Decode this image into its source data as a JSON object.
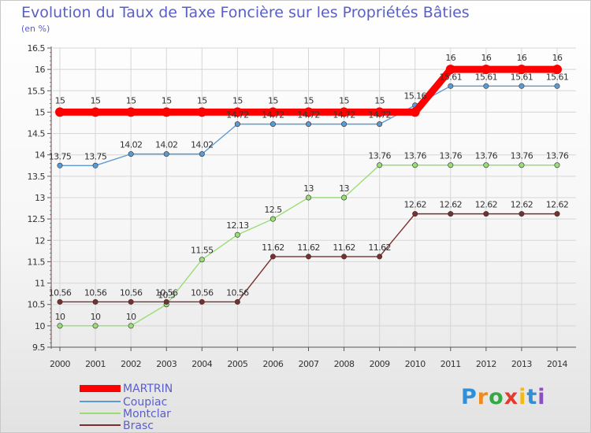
{
  "header": {
    "title": "Evolution du Taux de Taxe Foncière sur les Propriétés Bâties",
    "unit": "(en %)"
  },
  "logo": {
    "text": "Proxiti",
    "colors": [
      "#2f8fd8",
      "#f08a1c",
      "#35a845",
      "#e23a2e",
      "#f5b915",
      "#2f8fd8",
      "#8d4fbf"
    ]
  },
  "chart_data": {
    "type": "line",
    "title": "Evolution du Taux de Taxe Foncière sur les Propriétés Bâties",
    "ylabel": "(en %)",
    "xlabel": "",
    "x": [
      "2000",
      "2001",
      "2002",
      "2003",
      "2004",
      "2005",
      "2006",
      "2007",
      "2008",
      "2009",
      "2010",
      "2011",
      "2012",
      "2013",
      "2014"
    ],
    "ylim": [
      9.5,
      16.5
    ],
    "yticks": [
      "9.5",
      "10",
      "10.5",
      "11",
      "11.5",
      "12",
      "12.5",
      "13",
      "13.5",
      "14",
      "14.5",
      "15",
      "15.5",
      "16",
      "16.5"
    ],
    "grid": true,
    "legend": "bottom-left",
    "series": [
      {
        "name": "MARTRIN",
        "color": "#ff0000",
        "width": 9,
        "values": [
          15,
          15,
          15,
          15,
          15,
          15,
          15,
          15,
          15,
          15,
          15,
          16,
          16,
          16,
          16
        ],
        "labels": [
          "15",
          "15",
          "15",
          "15",
          "15",
          "15",
          "15",
          "15",
          "15",
          "15",
          "",
          "16",
          "16",
          "16",
          "16"
        ]
      },
      {
        "name": "Coupiac",
        "color": "#5b9bd5",
        "width": 1.4,
        "values": [
          13.75,
          13.75,
          14.02,
          14.02,
          14.02,
          14.72,
          14.72,
          14.72,
          14.72,
          14.72,
          15.16,
          15.61,
          15.61,
          15.61,
          15.61
        ],
        "labels": [
          "13.75",
          "13.75",
          "14.02",
          "14.02",
          "14.02",
          "14.72",
          "14.72",
          "14.72",
          "14.72",
          "14.72",
          "15.16",
          "15.61",
          "15.61",
          "15.61",
          "15.61"
        ]
      },
      {
        "name": "Montclar",
        "color": "#99dd77",
        "width": 1.4,
        "values": [
          10,
          10,
          10,
          10.5,
          11.55,
          12.13,
          12.5,
          13,
          13,
          13.76,
          13.76,
          13.76,
          13.76,
          13.76,
          13.76
        ],
        "labels": [
          "10",
          "10",
          "10",
          "10.5",
          "11.55",
          "12.13",
          "12.5",
          "13",
          "13",
          "13.76",
          "13.76",
          "13.76",
          "13.76",
          "13.76",
          "13.76"
        ]
      },
      {
        "name": "Brasc",
        "color": "#7a2e2e",
        "width": 1.4,
        "values": [
          10.56,
          10.56,
          10.56,
          10.56,
          10.56,
          10.56,
          11.62,
          11.62,
          11.62,
          11.62,
          12.62,
          12.62,
          12.62,
          12.62,
          12.62
        ],
        "labels": [
          "10.56",
          "10.56",
          "10.56",
          "10.56",
          "10.56",
          "10.56",
          "11.62",
          "11.62",
          "11.62",
          "11.62",
          "12.62",
          "12.62",
          "12.62",
          "12.62",
          "12.62"
        ]
      }
    ]
  }
}
